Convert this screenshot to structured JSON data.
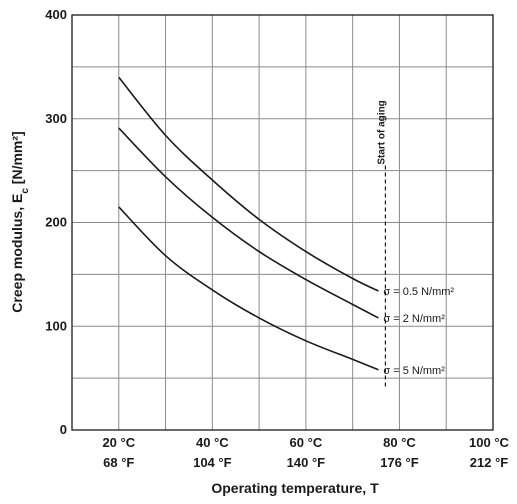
{
  "chart_data": {
    "type": "line",
    "xlabel": "Operating temperature, T",
    "ylabel": "Creep modulus, Ec [N/mm²]",
    "xlim": [
      10,
      100
    ],
    "ylim": [
      0,
      400
    ],
    "x_ticks": [
      {
        "value": 20,
        "label_c": "20 °C",
        "label_f": "68 °F"
      },
      {
        "value": 40,
        "label_c": "40 °C",
        "label_f": "104 °F"
      },
      {
        "value": 60,
        "label_c": "60 °C",
        "label_f": "140 °F"
      },
      {
        "value": 80,
        "label_c": "80 °C",
        "label_f": "176 °F"
      },
      {
        "value": 100,
        "label_c": "100 °C",
        "label_f": "212 °F"
      }
    ],
    "y_ticks": [
      0,
      100,
      200,
      300,
      400
    ],
    "x_gridlines": [
      10,
      20,
      30,
      40,
      50,
      60,
      70,
      80,
      90,
      100
    ],
    "y_gridlines": [
      0,
      50,
      100,
      150,
      200,
      250,
      300,
      350,
      400
    ],
    "grid": true,
    "series": [
      {
        "name": "σ = 0.5 N/mm²",
        "x": [
          20,
          30,
          40,
          50,
          60,
          70,
          75.5
        ],
        "values": [
          340,
          284,
          241,
          203,
          172,
          146,
          134
        ]
      },
      {
        "name": "σ = 2 N/mm²",
        "x": [
          20,
          30,
          40,
          50,
          60,
          70,
          75.5
        ],
        "values": [
          291,
          244,
          205,
          172,
          145,
          121,
          108
        ]
      },
      {
        "name": "σ = 5 N/mm²",
        "x": [
          20,
          30,
          40,
          50,
          60,
          70,
          75.5
        ],
        "values": [
          215,
          168,
          135,
          108,
          86,
          68,
          58
        ]
      }
    ],
    "marker": {
      "label": "Start of aging",
      "x": 77,
      "y_range": [
        40,
        255
      ]
    }
  }
}
